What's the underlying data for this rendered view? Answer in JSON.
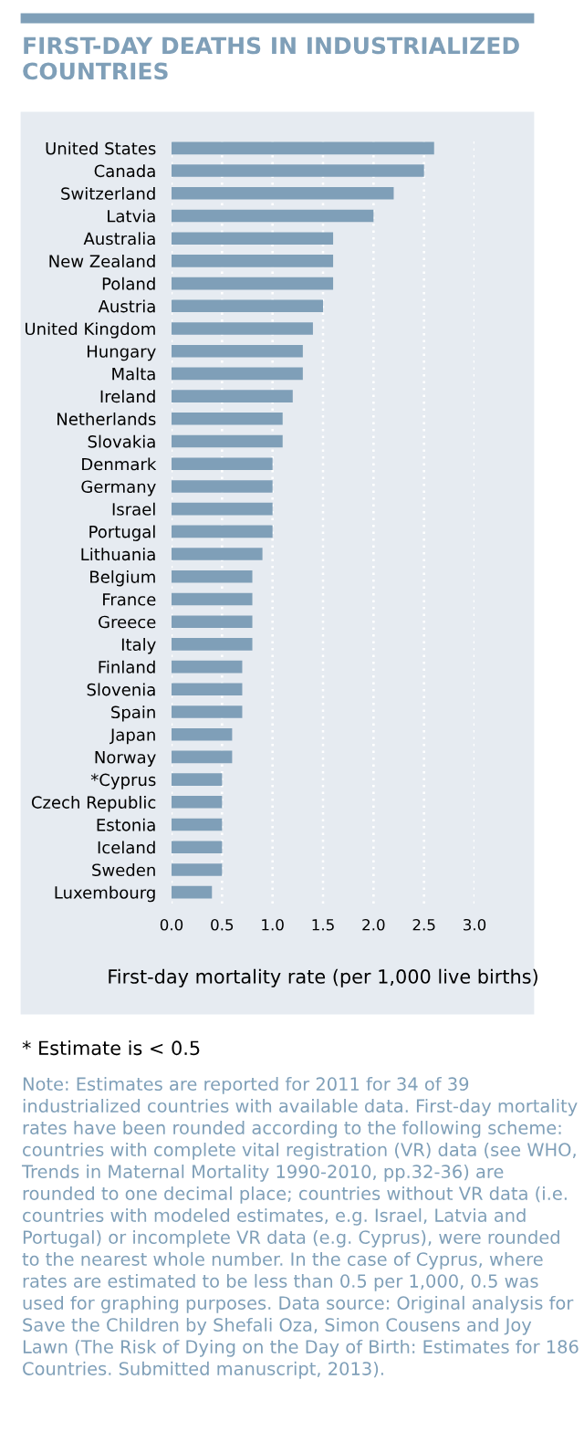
{
  "chart_data": {
    "type": "bar",
    "orientation": "horizontal",
    "title": "FIRST-DAY DEATHS IN INDUSTRIALIZED COUNTRIES",
    "xlabel": "First-day mortality rate (per 1,000 live births)",
    "categories": [
      "United States",
      "Canada",
      "Switzerland",
      "Latvia",
      "Australia",
      "New Zealand",
      "Poland",
      "Austria",
      "United Kingdom",
      "Hungary",
      "Malta",
      "Ireland",
      "Netherlands",
      "Slovakia",
      "Denmark",
      "Germany",
      "Israel",
      "Portugal",
      "Lithuania",
      "Belgium",
      "France",
      "Greece",
      "Italy",
      "Finland",
      "Slovenia",
      "Spain",
      "Japan",
      "Norway",
      "*Cyprus",
      "Czech Republic",
      "Estonia",
      "Iceland",
      "Sweden",
      "Luxembourg"
    ],
    "values": [
      2.6,
      2.5,
      2.2,
      2.0,
      1.6,
      1.6,
      1.6,
      1.5,
      1.4,
      1.3,
      1.3,
      1.2,
      1.1,
      1.1,
      1.0,
      1.0,
      1.0,
      1.0,
      0.9,
      0.8,
      0.8,
      0.8,
      0.8,
      0.7,
      0.7,
      0.7,
      0.6,
      0.6,
      0.5,
      0.5,
      0.5,
      0.5,
      0.5,
      0.4
    ],
    "color": "#7f9fb8",
    "xlim": [
      0,
      3.0
    ],
    "xticks": [
      {
        "value": 0,
        "label": "0.0"
      },
      {
        "value": 0.5,
        "label": "0.5"
      },
      {
        "value": 1,
        "label": "1.0"
      },
      {
        "value": 1.5,
        "label": "1.5"
      },
      {
        "value": 2,
        "label": "2.0"
      },
      {
        "value": 2.5,
        "label": "2.5"
      },
      {
        "value": 3,
        "label": "3.0"
      }
    ],
    "grid": "x",
    "annotations": [
      "* Estimate is < 0.5",
      "Note: Estimates are reported for 2011 for 34 of 39 industrialized countries with available data. First-day mortality rates have been rounded according to the following scheme: countries with complete vital registration (VR) data (see WHO, Trends in Maternal Mortality 1990-2010, pp.32-36) are rounded to one decimal place; countries without VR data (i.e. countries with modeled estimates, e.g. Israel, Latvia and Portugal) or incomplete VR data (e.g. Cyprus), were rounded to the nearest whole number. In the case of Cyprus, where rates are estimated to be less than 0.5 per 1,000, 0.5 was used for graphing purposes. Data source: Original analysis for Save the Children by Shefali Oza, Simon Cousens and Joy Lawn (The Risk of Dying on the Day of Birth: Estimates for 186 Countries. Submitted manuscript, 2013)."
    ]
  }
}
